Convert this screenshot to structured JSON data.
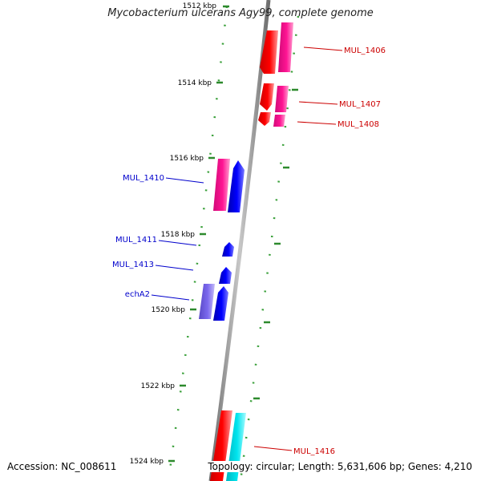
{
  "title": "Mycobacterium ulcerans Agy99, complete genome",
  "footer": {
    "accession": "Accession: NC_008611",
    "summary": "Topology: circular; Length: 5,631,606 bp; Genes: 4,210"
  },
  "colors": {
    "backbone": "#8c8c8c",
    "tick": "#2d8a2d",
    "minor_tick": "#3aa03a",
    "forward_label": "#cc0000",
    "reverse_label": "#0000cc",
    "red_gene": "#ff0000",
    "pink_gene": "#ff1493",
    "blue_gene": "#0000ff",
    "purple_gene": "#7b68ee",
    "cyan_gene": "#00e5ee"
  },
  "ticks": [
    {
      "label": "1512 kbp",
      "kbp": 1512
    },
    {
      "label": "1514 kbp",
      "kbp": 1514
    },
    {
      "label": "1516 kbp",
      "kbp": 1516
    },
    {
      "label": "1518 kbp",
      "kbp": 1518
    },
    {
      "label": "1520 kbp",
      "kbp": 1520
    },
    {
      "label": "1522 kbp",
      "kbp": 1522
    },
    {
      "label": "1524 kbp",
      "kbp": 1524
    }
  ],
  "gene_labels": [
    {
      "text": "MUL_1406",
      "strand": "forward"
    },
    {
      "text": "MUL_1407",
      "strand": "forward"
    },
    {
      "text": "MUL_1408",
      "strand": "forward"
    },
    {
      "text": "MUL_1410",
      "strand": "reverse"
    },
    {
      "text": "MUL_1411",
      "strand": "reverse"
    },
    {
      "text": "MUL_1413",
      "strand": "reverse"
    },
    {
      "text": "echA2",
      "strand": "reverse"
    },
    {
      "text": "MUL_1416",
      "strand": "forward"
    }
  ]
}
